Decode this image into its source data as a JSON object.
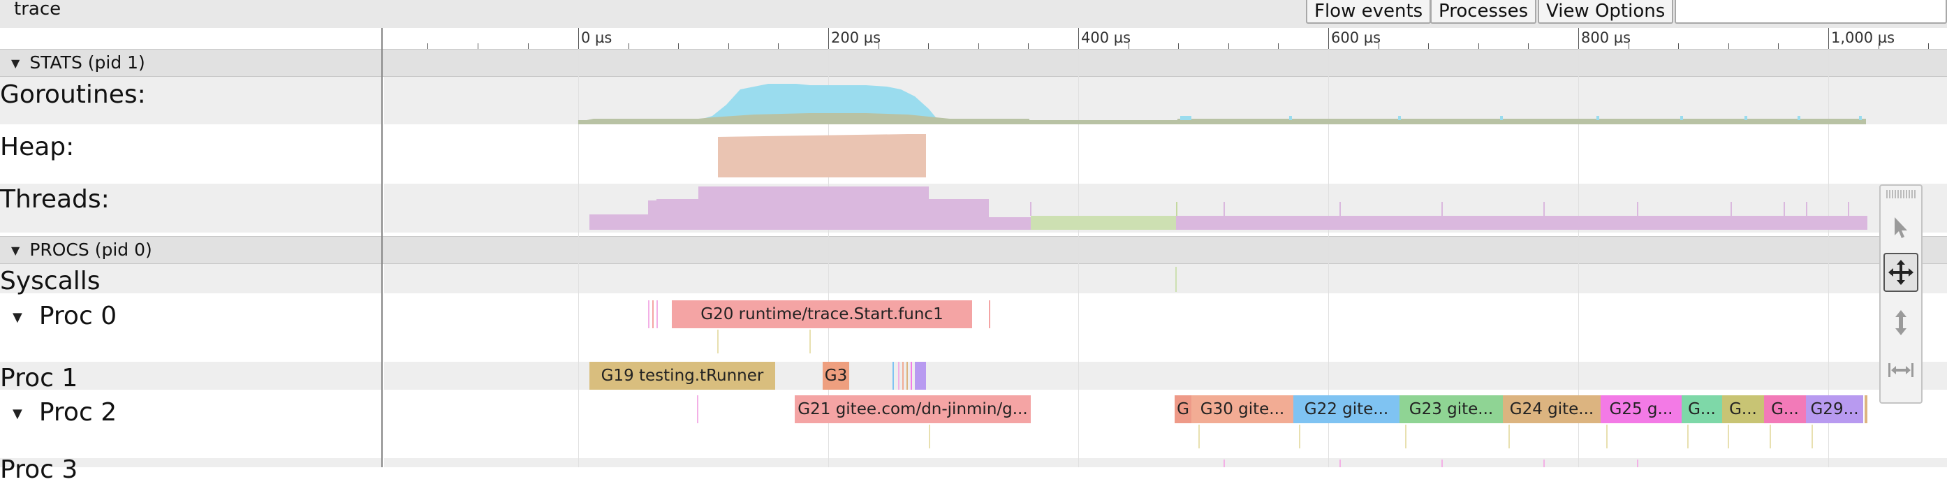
{
  "window": {
    "title": "trace"
  },
  "toolbar": {
    "flow_events": "Flow events",
    "processes": "Processes",
    "view_options": "View Options",
    "search_value": ""
  },
  "timeline": {
    "labels": [
      "0 µs",
      "200 µs",
      "400 µs",
      "600 µs",
      "800 µs",
      "1,000 µs"
    ]
  },
  "sections": {
    "stats": {
      "label": "STATS (pid 1)"
    },
    "procs": {
      "label": "PROCS (pid 0)"
    }
  },
  "rows": {
    "goroutines": "Goroutines:",
    "heap": "Heap:",
    "threads": "Threads:",
    "syscalls": "Syscalls",
    "proc0": "Proc 0",
    "proc1": "Proc 1",
    "proc2": "Proc 2",
    "proc3": "Proc 3"
  },
  "slices": {
    "proc0": [
      {
        "label": "G20 runtime/trace.Start.func1",
        "color": "#f4a4a4"
      }
    ],
    "proc1": [
      {
        "label": "G19 testing.tRunner",
        "color": "#d9be7e"
      },
      {
        "label": "G3",
        "color": "#ee9f7f"
      }
    ],
    "proc2": [
      {
        "label": "G21 gitee.com/dn-jinmin/g...",
        "color": "#f4a4a4"
      },
      {
        "label": "G",
        "color": "#ee9a88"
      },
      {
        "label": "G30 gite...",
        "color": "#f2ac94"
      },
      {
        "label": "G22 gite...",
        "color": "#7fc3f2"
      },
      {
        "label": "G23 gite...",
        "color": "#8fd494"
      },
      {
        "label": "G24 gite...",
        "color": "#dcb480"
      },
      {
        "label": "G25 g...",
        "color": "#f37ae6"
      },
      {
        "label": "G...",
        "color": "#7ed8a8"
      },
      {
        "label": "G...",
        "color": "#c8c474"
      },
      {
        "label": "G...",
        "color": "#f27ab8"
      },
      {
        "label": "G29...",
        "color": "#b89af0"
      }
    ]
  },
  "tools": [
    "select-tool",
    "pan-tool",
    "zoom-tool",
    "timing-tool"
  ],
  "colors": {
    "goroutines_runnable": "#9adcee",
    "goroutines_running": "#b8c2a4",
    "heap": "#eac4b2",
    "threads_running": "#dab8de",
    "threads_syscall": "#cde0b2",
    "toolbar_bg": "#e8e8e8",
    "section_bg": "#e1e1e1"
  }
}
